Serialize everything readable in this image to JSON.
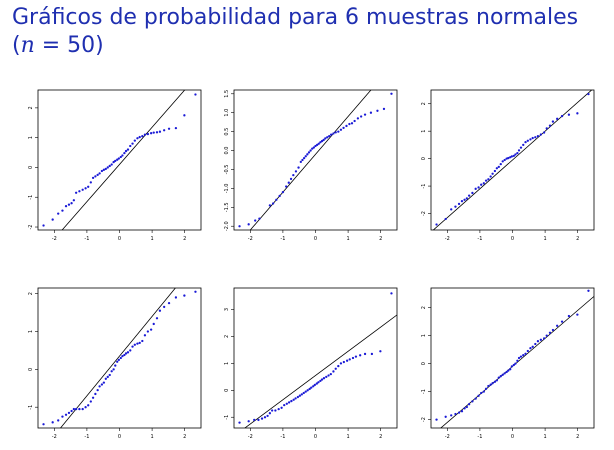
{
  "slide": {
    "title_line1": "Gráficos de probabilidad para 6 muestras normales",
    "title_line2_open": "(",
    "title_n": "n",
    "title_eq": " = 50)"
  },
  "colors": {
    "title": "#1f2fb0",
    "points": "#1a1ad6",
    "line": "#000000"
  },
  "chart_data": [
    {
      "type": "scatter",
      "title": "",
      "xlabel": "",
      "ylabel": "",
      "xlim": [
        -2.5,
        2.5
      ],
      "ylim": [
        -2.1,
        2.6
      ],
      "xticks": [
        "-2",
        "-1",
        "0",
        "1",
        "2"
      ],
      "yticks": [
        "-2",
        "-1",
        "0",
        "1",
        "2"
      ],
      "ytick_values": [
        -2,
        -1,
        0,
        1,
        2
      ],
      "line": {
        "intercept": 0.1,
        "slope": 1.25
      },
      "points": [
        [
          -2.33,
          -1.95
        ],
        [
          -2.05,
          -1.75
        ],
        [
          -1.88,
          -1.55
        ],
        [
          -1.75,
          -1.45
        ],
        [
          -1.64,
          -1.3
        ],
        [
          -1.55,
          -1.25
        ],
        [
          -1.47,
          -1.2
        ],
        [
          -1.4,
          -1.1
        ],
        [
          -1.33,
          -0.85
        ],
        [
          -1.23,
          -0.8
        ],
        [
          -1.13,
          -0.75
        ],
        [
          -1.04,
          -0.7
        ],
        [
          -0.96,
          -0.65
        ],
        [
          -0.88,
          -0.5
        ],
        [
          -0.81,
          -0.35
        ],
        [
          -0.74,
          -0.3
        ],
        [
          -0.67,
          -0.25
        ],
        [
          -0.61,
          -0.2
        ],
        [
          -0.54,
          -0.12
        ],
        [
          -0.48,
          -0.08
        ],
        [
          -0.42,
          -0.05
        ],
        [
          -0.36,
          0.0
        ],
        [
          -0.3,
          0.05
        ],
        [
          -0.24,
          0.1
        ],
        [
          -0.18,
          0.18
        ],
        [
          -0.13,
          0.22
        ],
        [
          -0.07,
          0.26
        ],
        [
          -0.02,
          0.3
        ],
        [
          0.04,
          0.35
        ],
        [
          0.09,
          0.4
        ],
        [
          0.15,
          0.48
        ],
        [
          0.2,
          0.55
        ],
        [
          0.26,
          0.6
        ],
        [
          0.33,
          0.72
        ],
        [
          0.4,
          0.8
        ],
        [
          0.47,
          0.9
        ],
        [
          0.55,
          0.98
        ],
        [
          0.62,
          1.02
        ],
        [
          0.7,
          1.05
        ],
        [
          0.78,
          1.1
        ],
        [
          0.87,
          1.12
        ],
        [
          0.97,
          1.15
        ],
        [
          1.05,
          1.17
        ],
        [
          1.15,
          1.18
        ],
        [
          1.24,
          1.2
        ],
        [
          1.37,
          1.25
        ],
        [
          1.52,
          1.3
        ],
        [
          1.73,
          1.32
        ],
        [
          1.99,
          1.75
        ],
        [
          2.33,
          2.45
        ]
      ]
    },
    {
      "type": "scatter",
      "title": "",
      "xlabel": "",
      "ylabel": "",
      "xlim": [
        -2.5,
        2.5
      ],
      "ylim": [
        -2.1,
        1.6
      ],
      "xticks": [
        "-2",
        "-1",
        "0",
        "1",
        "2"
      ],
      "yticks": [
        "-2.0",
        "-1.5",
        "-1.0",
        "-0.5",
        "0.0",
        "0.5",
        "1.0",
        "1.5"
      ],
      "ytick_values": [
        -2.0,
        -1.5,
        -1.0,
        -0.5,
        0.0,
        0.5,
        1.0,
        1.5
      ],
      "line": {
        "intercept": -0.1,
        "slope": 1.0
      },
      "points": [
        [
          -2.33,
          -2.0
        ],
        [
          -2.05,
          -1.95
        ],
        [
          -1.85,
          -1.85
        ],
        [
          -1.72,
          -1.8
        ],
        [
          -1.4,
          -1.45
        ],
        [
          -1.3,
          -1.4
        ],
        [
          -1.2,
          -1.3
        ],
        [
          -1.1,
          -1.2
        ],
        [
          -1.0,
          -1.1
        ],
        [
          -0.9,
          -0.95
        ],
        [
          -0.82,
          -0.85
        ],
        [
          -0.75,
          -0.75
        ],
        [
          -0.68,
          -0.65
        ],
        [
          -0.6,
          -0.55
        ],
        [
          -0.52,
          -0.45
        ],
        [
          -0.45,
          -0.3
        ],
        [
          -0.4,
          -0.25
        ],
        [
          -0.35,
          -0.2
        ],
        [
          -0.3,
          -0.15
        ],
        [
          -0.25,
          -0.1
        ],
        [
          -0.2,
          -0.05
        ],
        [
          -0.15,
          0.0
        ],
        [
          -0.1,
          0.05
        ],
        [
          -0.05,
          0.08
        ],
        [
          0.0,
          0.12
        ],
        [
          0.05,
          0.15
        ],
        [
          0.1,
          0.18
        ],
        [
          0.15,
          0.22
        ],
        [
          0.2,
          0.25
        ],
        [
          0.25,
          0.28
        ],
        [
          0.3,
          0.32
        ],
        [
          0.36,
          0.35
        ],
        [
          0.42,
          0.38
        ],
        [
          0.48,
          0.42
        ],
        [
          0.55,
          0.45
        ],
        [
          0.62,
          0.48
        ],
        [
          0.7,
          0.5
        ],
        [
          0.78,
          0.55
        ],
        [
          0.86,
          0.6
        ],
        [
          0.95,
          0.65
        ],
        [
          1.04,
          0.7
        ],
        [
          1.12,
          0.72
        ],
        [
          1.2,
          0.78
        ],
        [
          1.3,
          0.85
        ],
        [
          1.4,
          0.9
        ],
        [
          1.52,
          0.95
        ],
        [
          1.7,
          1.0
        ],
        [
          1.9,
          1.05
        ],
        [
          2.1,
          1.1
        ],
        [
          2.33,
          1.5
        ]
      ]
    },
    {
      "type": "scatter",
      "title": "",
      "xlabel": "",
      "ylabel": "",
      "xlim": [
        -2.5,
        2.5
      ],
      "ylim": [
        -2.6,
        2.5
      ],
      "xticks": [
        "-2",
        "-1",
        "0",
        "1",
        "2"
      ],
      "yticks": [
        "-2",
        "-1",
        "0",
        "1",
        "2"
      ],
      "ytick_values": [
        -2,
        -1,
        0,
        1,
        2
      ],
      "line": {
        "intercept": -0.05,
        "slope": 1.05
      },
      "points": [
        [
          -2.33,
          -2.4
        ],
        [
          -2.05,
          -2.2
        ],
        [
          -1.88,
          -1.85
        ],
        [
          -1.75,
          -1.75
        ],
        [
          -1.64,
          -1.65
        ],
        [
          -1.55,
          -1.55
        ],
        [
          -1.47,
          -1.5
        ],
        [
          -1.4,
          -1.45
        ],
        [
          -1.33,
          -1.35
        ],
        [
          -1.23,
          -1.25
        ],
        [
          -1.13,
          -1.1
        ],
        [
          -1.04,
          -1.05
        ],
        [
          -0.96,
          -0.95
        ],
        [
          -0.88,
          -0.9
        ],
        [
          -0.81,
          -0.8
        ],
        [
          -0.74,
          -0.75
        ],
        [
          -0.67,
          -0.65
        ],
        [
          -0.61,
          -0.55
        ],
        [
          -0.54,
          -0.45
        ],
        [
          -0.48,
          -0.35
        ],
        [
          -0.42,
          -0.3
        ],
        [
          -0.36,
          -0.2
        ],
        [
          -0.3,
          -0.1
        ],
        [
          -0.24,
          -0.05
        ],
        [
          -0.18,
          0.0
        ],
        [
          -0.13,
          0.02
        ],
        [
          -0.07,
          0.05
        ],
        [
          -0.02,
          0.08
        ],
        [
          0.04,
          0.1
        ],
        [
          0.09,
          0.15
        ],
        [
          0.15,
          0.2
        ],
        [
          0.2,
          0.3
        ],
        [
          0.26,
          0.4
        ],
        [
          0.33,
          0.5
        ],
        [
          0.4,
          0.6
        ],
        [
          0.47,
          0.65
        ],
        [
          0.55,
          0.7
        ],
        [
          0.62,
          0.75
        ],
        [
          0.7,
          0.78
        ],
        [
          0.78,
          0.82
        ],
        [
          0.87,
          0.88
        ],
        [
          0.97,
          0.95
        ],
        [
          1.05,
          1.1
        ],
        [
          1.15,
          1.2
        ],
        [
          1.24,
          1.35
        ],
        [
          1.37,
          1.45
        ],
        [
          1.52,
          1.55
        ],
        [
          1.73,
          1.6
        ],
        [
          1.99,
          1.65
        ],
        [
          2.33,
          2.35
        ]
      ]
    },
    {
      "type": "scatter",
      "title": "",
      "xlabel": "",
      "ylabel": "",
      "xlim": [
        -2.5,
        2.5
      ],
      "ylim": [
        -1.55,
        2.15
      ],
      "xticks": [
        "-2",
        "-1",
        "0",
        "1",
        "2"
      ],
      "yticks": [
        "-1",
        "0",
        "1",
        "2"
      ],
      "ytick_values": [
        -1,
        0,
        1,
        2
      ],
      "line": {
        "intercept": 0.35,
        "slope": 1.05
      },
      "points": [
        [
          -2.33,
          -1.45
        ],
        [
          -2.05,
          -1.4
        ],
        [
          -1.88,
          -1.35
        ],
        [
          -1.75,
          -1.25
        ],
        [
          -1.64,
          -1.2
        ],
        [
          -1.55,
          -1.15
        ],
        [
          -1.47,
          -1.1
        ],
        [
          -1.4,
          -1.05
        ],
        [
          -1.33,
          -1.05
        ],
        [
          -1.23,
          -1.05
        ],
        [
          -1.13,
          -1.05
        ],
        [
          -1.04,
          -1.0
        ],
        [
          -0.96,
          -0.95
        ],
        [
          -0.88,
          -0.85
        ],
        [
          -0.81,
          -0.75
        ],
        [
          -0.74,
          -0.65
        ],
        [
          -0.67,
          -0.55
        ],
        [
          -0.61,
          -0.45
        ],
        [
          -0.54,
          -0.4
        ],
        [
          -0.48,
          -0.35
        ],
        [
          -0.42,
          -0.25
        ],
        [
          -0.36,
          -0.2
        ],
        [
          -0.3,
          -0.15
        ],
        [
          -0.24,
          -0.05
        ],
        [
          -0.18,
          0.0
        ],
        [
          -0.13,
          0.1
        ],
        [
          -0.07,
          0.2
        ],
        [
          -0.02,
          0.25
        ],
        [
          0.04,
          0.3
        ],
        [
          0.09,
          0.35
        ],
        [
          0.15,
          0.38
        ],
        [
          0.2,
          0.42
        ],
        [
          0.26,
          0.45
        ],
        [
          0.33,
          0.5
        ],
        [
          0.4,
          0.6
        ],
        [
          0.47,
          0.65
        ],
        [
          0.55,
          0.68
        ],
        [
          0.62,
          0.7
        ],
        [
          0.7,
          0.75
        ],
        [
          0.78,
          0.9
        ],
        [
          0.87,
          1.0
        ],
        [
          0.97,
          1.05
        ],
        [
          1.05,
          1.2
        ],
        [
          1.15,
          1.35
        ],
        [
          1.24,
          1.55
        ],
        [
          1.37,
          1.65
        ],
        [
          1.52,
          1.75
        ],
        [
          1.73,
          1.9
        ],
        [
          1.99,
          1.95
        ],
        [
          2.33,
          2.05
        ]
      ]
    },
    {
      "type": "scatter",
      "title": "",
      "xlabel": "",
      "ylabel": "",
      "xlim": [
        -2.5,
        2.5
      ],
      "ylim": [
        -1.4,
        3.8
      ],
      "xticks": [
        "-2",
        "-1",
        "0",
        "1",
        "2"
      ],
      "yticks": [
        "-1",
        "0",
        "1",
        "2",
        "3"
      ],
      "ytick_values": [
        -1,
        0,
        1,
        2,
        3
      ],
      "line": {
        "intercept": 0.55,
        "slope": 0.9
      },
      "points": [
        [
          -2.33,
          -1.2
        ],
        [
          -2.05,
          -1.15
        ],
        [
          -1.88,
          -1.1
        ],
        [
          -1.75,
          -1.1
        ],
        [
          -1.64,
          -1.05
        ],
        [
          -1.55,
          -1.0
        ],
        [
          -1.47,
          -0.95
        ],
        [
          -1.4,
          -0.85
        ],
        [
          -1.33,
          -0.75
        ],
        [
          -1.23,
          -0.75
        ],
        [
          -1.13,
          -0.7
        ],
        [
          -1.04,
          -0.65
        ],
        [
          -0.96,
          -0.55
        ],
        [
          -0.88,
          -0.5
        ],
        [
          -0.81,
          -0.45
        ],
        [
          -0.74,
          -0.4
        ],
        [
          -0.67,
          -0.35
        ],
        [
          -0.61,
          -0.3
        ],
        [
          -0.54,
          -0.25
        ],
        [
          -0.48,
          -0.2
        ],
        [
          -0.42,
          -0.15
        ],
        [
          -0.36,
          -0.1
        ],
        [
          -0.3,
          -0.05
        ],
        [
          -0.24,
          0.0
        ],
        [
          -0.18,
          0.05
        ],
        [
          -0.13,
          0.1
        ],
        [
          -0.07,
          0.15
        ],
        [
          -0.02,
          0.2
        ],
        [
          0.04,
          0.25
        ],
        [
          0.09,
          0.3
        ],
        [
          0.15,
          0.35
        ],
        [
          0.2,
          0.4
        ],
        [
          0.26,
          0.45
        ],
        [
          0.33,
          0.5
        ],
        [
          0.4,
          0.55
        ],
        [
          0.47,
          0.6
        ],
        [
          0.55,
          0.7
        ],
        [
          0.62,
          0.8
        ],
        [
          0.7,
          0.9
        ],
        [
          0.78,
          1.0
        ],
        [
          0.87,
          1.05
        ],
        [
          0.97,
          1.1
        ],
        [
          1.05,
          1.15
        ],
        [
          1.15,
          1.2
        ],
        [
          1.24,
          1.25
        ],
        [
          1.37,
          1.3
        ],
        [
          1.52,
          1.35
        ],
        [
          1.73,
          1.35
        ],
        [
          1.99,
          1.45
        ],
        [
          2.33,
          3.6
        ]
      ]
    },
    {
      "type": "scatter",
      "title": "",
      "xlabel": "",
      "ylabel": "",
      "xlim": [
        -2.5,
        2.5
      ],
      "ylim": [
        -2.3,
        2.7
      ],
      "xticks": [
        "-2",
        "-1",
        "0",
        "1",
        "2"
      ],
      "yticks": [
        "-2",
        "-1",
        "0",
        "1",
        "2"
      ],
      "ytick_values": [
        -2,
        -1,
        0,
        1,
        2
      ],
      "line": {
        "intercept": -0.1,
        "slope": 1.0
      },
      "points": [
        [
          -2.33,
          -2.0
        ],
        [
          -2.05,
          -1.9
        ],
        [
          -1.88,
          -1.85
        ],
        [
          -1.75,
          -1.8
        ],
        [
          -1.64,
          -1.75
        ],
        [
          -1.55,
          -1.7
        ],
        [
          -1.47,
          -1.6
        ],
        [
          -1.4,
          -1.55
        ],
        [
          -1.33,
          -1.45
        ],
        [
          -1.23,
          -1.35
        ],
        [
          -1.13,
          -1.25
        ],
        [
          -1.04,
          -1.15
        ],
        [
          -0.96,
          -1.05
        ],
        [
          -0.88,
          -1.0
        ],
        [
          -0.81,
          -0.9
        ],
        [
          -0.74,
          -0.8
        ],
        [
          -0.67,
          -0.75
        ],
        [
          -0.61,
          -0.7
        ],
        [
          -0.54,
          -0.65
        ],
        [
          -0.48,
          -0.6
        ],
        [
          -0.42,
          -0.5
        ],
        [
          -0.36,
          -0.45
        ],
        [
          -0.3,
          -0.4
        ],
        [
          -0.24,
          -0.35
        ],
        [
          -0.18,
          -0.3
        ],
        [
          -0.13,
          -0.25
        ],
        [
          -0.07,
          -0.2
        ],
        [
          -0.02,
          -0.1
        ],
        [
          0.04,
          -0.05
        ],
        [
          0.09,
          0.0
        ],
        [
          0.15,
          0.1
        ],
        [
          0.2,
          0.2
        ],
        [
          0.26,
          0.25
        ],
        [
          0.33,
          0.3
        ],
        [
          0.4,
          0.35
        ],
        [
          0.47,
          0.45
        ],
        [
          0.55,
          0.55
        ],
        [
          0.62,
          0.6
        ],
        [
          0.7,
          0.7
        ],
        [
          0.78,
          0.8
        ],
        [
          0.87,
          0.85
        ],
        [
          0.97,
          0.9
        ],
        [
          1.05,
          1.0
        ],
        [
          1.15,
          1.1
        ],
        [
          1.24,
          1.2
        ],
        [
          1.37,
          1.35
        ],
        [
          1.52,
          1.5
        ],
        [
          1.73,
          1.7
        ],
        [
          1.99,
          1.75
        ],
        [
          2.33,
          2.6
        ]
      ]
    }
  ]
}
